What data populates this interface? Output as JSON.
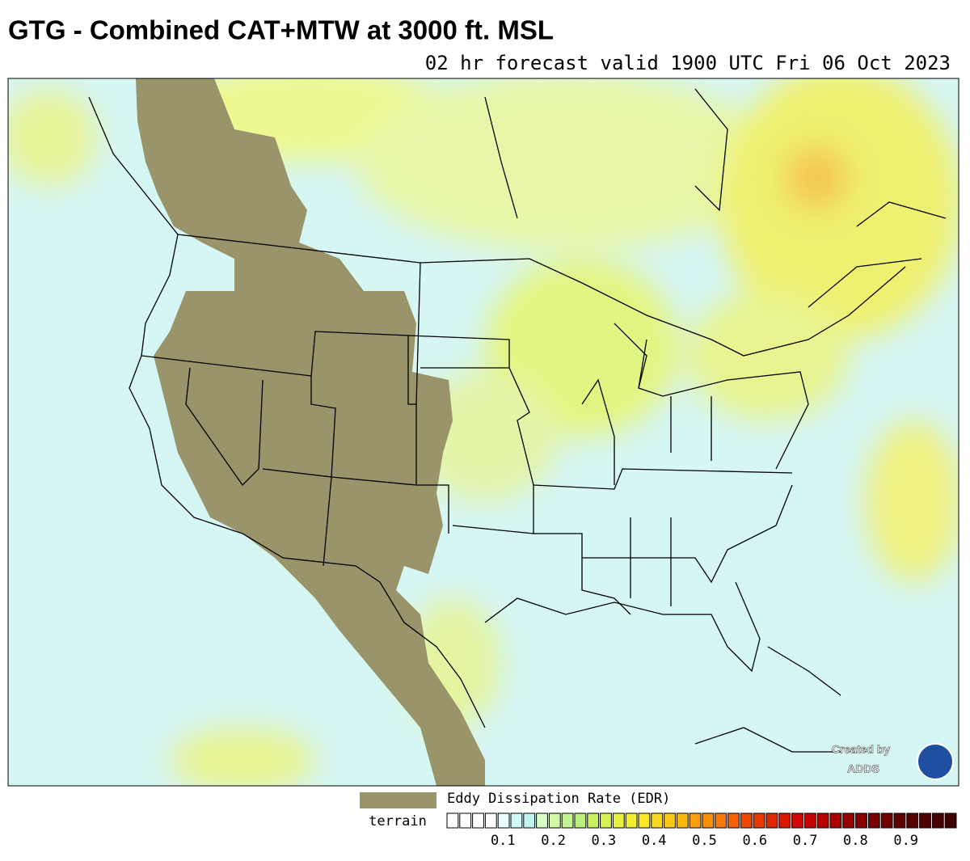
{
  "header": {
    "title": "GTG - Combined CAT+MTW at 3000 ft. MSL",
    "subtitle": "02 hr forecast valid 1900 UTC Fri 06 Oct 2023"
  },
  "map": {
    "credit_line1": "Created by",
    "credit_line2": "ADDS",
    "terrain_color": "#999469",
    "background_color": "#d6f6f4"
  },
  "legend": {
    "title": "Eddy Dissipation Rate (EDR)",
    "terrain_label": "terrain",
    "range": [
      0,
      1
    ],
    "ticks": [
      0.1,
      0.2,
      0.3,
      0.4,
      0.5,
      0.6,
      0.7,
      0.8,
      0.9
    ],
    "colors": [
      "#ffffff",
      "#ffffff",
      "#ffffff",
      "#ffffff",
      "#e8ffff",
      "#d0fafa",
      "#c0f4f0",
      "#d8fcc8",
      "#d0f8a8",
      "#c4f490",
      "#b8f078",
      "#c8f060",
      "#d8f050",
      "#e8f040",
      "#f0f030",
      "#f8e828",
      "#f8d820",
      "#f8c818",
      "#f8b810",
      "#f8a010",
      "#f89008",
      "#f87808",
      "#f86000",
      "#f04800",
      "#e83800",
      "#e02800",
      "#d81800",
      "#d00800",
      "#c80000",
      "#b80000",
      "#a80000",
      "#980000",
      "#880000",
      "#780000",
      "#700000",
      "#600000",
      "#580000",
      "#500000",
      "#480000",
      "#400000"
    ]
  }
}
